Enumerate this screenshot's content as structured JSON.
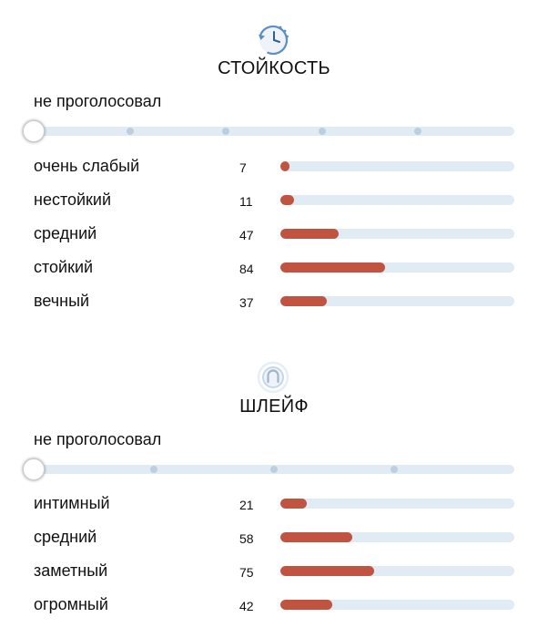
{
  "colors": {
    "bar_fill": "#c05441",
    "bar_track": "#e1ebf4",
    "icon_accent": "#5b8ec4"
  },
  "sections": [
    {
      "icon": "clock-history-icon",
      "title": "СТОЙКОСТЬ",
      "vote_status": "не проголосовал",
      "slider": {
        "steps": 5,
        "selected": 0
      },
      "max_scale": 188,
      "rows": [
        {
          "label": "очень слабый",
          "count": "7",
          "value": 7
        },
        {
          "label": "нестойкий",
          "count": "11",
          "value": 11
        },
        {
          "label": "средний",
          "count": "47",
          "value": 47
        },
        {
          "label": "стойкий",
          "count": "84",
          "value": 84
        },
        {
          "label": "вечный",
          "count": "37",
          "value": 37
        }
      ]
    },
    {
      "icon": "sillage-person-icon",
      "title": "ШЛЕЙФ",
      "vote_status": "не проголосовал",
      "slider": {
        "steps": 4,
        "selected": 0
      },
      "max_scale": 188,
      "rows": [
        {
          "label": "интимный",
          "count": "21",
          "value": 21
        },
        {
          "label": "средний",
          "count": "58",
          "value": 58
        },
        {
          "label": "заметный",
          "count": "75",
          "value": 75
        },
        {
          "label": "огромный",
          "count": "42",
          "value": 42
        }
      ]
    }
  ]
}
